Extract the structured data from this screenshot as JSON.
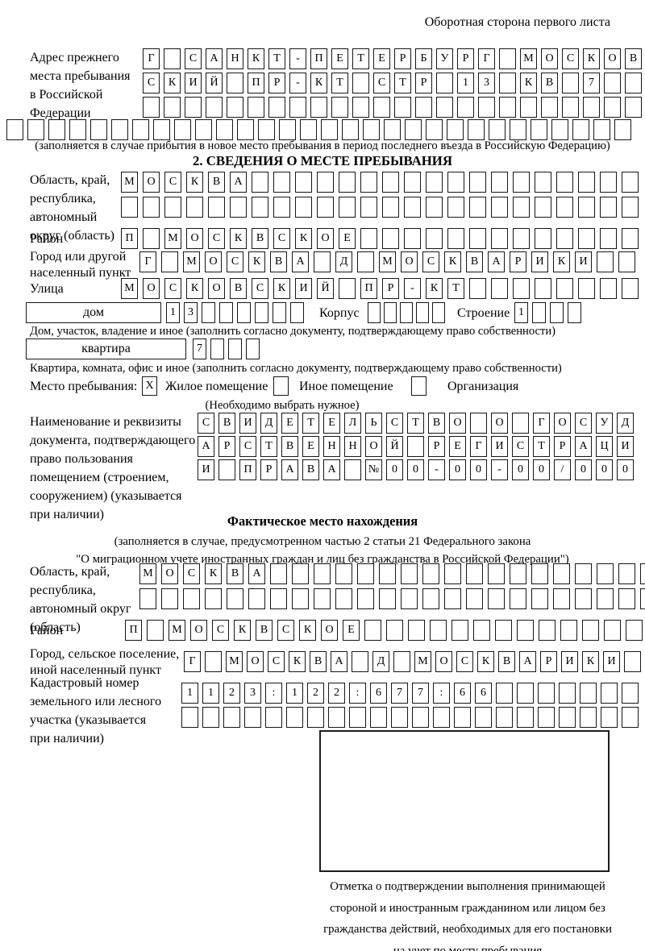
{
  "header": {
    "note": "Оборотная сторона первого листа"
  },
  "prev_address": {
    "label_lines": [
      "Адрес прежнего",
      "места пребывания",
      "в Российской",
      "Федерации"
    ],
    "rows": [
      {
        "text": "Г САНКТ-ПЕТЕРБУРГ МОСКОВ",
        "len": 24
      },
      {
        "text": "СКИЙ ПР-КТ СТР 13 КВ 7",
        "len": 24
      },
      {
        "text": "",
        "len": 24
      },
      {
        "text": "",
        "len": 30
      }
    ],
    "note": "(заполняется в случае прибытия в новое место пребывания в период последнего въезда в Российскую Федерацию)"
  },
  "stay": {
    "title": "2. СВЕДЕНИЯ О МЕСТЕ ПРЕБЫВАНИЯ",
    "oblast": {
      "label_lines": [
        "Область, край,",
        "республика,",
        "автономный",
        "округ (область)"
      ],
      "rows": [
        {
          "text": "МОСКВА",
          "len": 24
        },
        {
          "text": "",
          "len": 24
        }
      ]
    },
    "raion": {
      "label": "Район",
      "row": {
        "text": "П МОСКВСКОЕ",
        "len": 24
      }
    },
    "gorod": {
      "label_lines": [
        "Город или другой",
        "населенный пункт"
      ],
      "row": {
        "text": "Г МОСКВА Д МОСКВАРИКИ",
        "len": 23
      }
    },
    "ulitsa": {
      "label": "Улица",
      "row": {
        "text": "МОСКОВСКИЙ ПР-КТ",
        "len": 24
      }
    },
    "dom": {
      "box_label": "дом",
      "cells": {
        "text": "13",
        "len": 8
      },
      "korpus_label": "Корпус",
      "korpus_cells": {
        "text": "",
        "len": 5
      },
      "stroenie_label": "Строение",
      "stroenie_cells": {
        "text": "1",
        "len": 4
      },
      "note": "Дом, участок, владение и иное (заполнить согласно документу, подтверждающему право собственности)"
    },
    "kvartira": {
      "box_label": "квартира",
      "cells": {
        "text": "7",
        "len": 4
      },
      "note": "Квартира, комната, офис и иное (заполнить согласно документу, подтверждающему право собственности)"
    },
    "mesto": {
      "label": "Место пребывания:",
      "options": [
        {
          "mark": {
            "text": "X",
            "len": 1
          },
          "label": "Жилое помещение"
        },
        {
          "mark": {
            "text": "",
            "len": 1
          },
          "label": "Иное помещение"
        },
        {
          "mark": {
            "text": "",
            "len": 1
          },
          "label": "Организация"
        }
      ],
      "note": "(Необходимо выбрать нужное)"
    },
    "document": {
      "label_lines": [
        "Наименование и реквизиты",
        "документа, подтверждающего",
        "право пользования",
        "помещением (строением,",
        "сооружением) (указывается",
        "при наличии)"
      ],
      "rows": [
        {
          "text": "СВИДЕТЕЛЬСТВО О ГОСУД",
          "len": 21
        },
        {
          "text": "АРСТВЕННОЙ РЕГИСТРАЦИ",
          "len": 21
        },
        {
          "text": "И ПРАВА №00-00-00/000",
          "len": 21
        }
      ]
    }
  },
  "fact": {
    "title": "Фактическое место нахождения",
    "note_lines": [
      "(заполняется в случае, предусмотренном частью 2 статьи 21 Федерального закона",
      "\"О миграционном учете иностранных граждан и лиц без гражданства в Российской Федерации\")"
    ],
    "oblast": {
      "label_lines": [
        "Область, край,",
        "республика,",
        "автономный округ",
        "(область)"
      ],
      "rows": [
        {
          "text": "МОСКВА",
          "len": 24
        },
        {
          "text": "",
          "len": 24
        }
      ]
    },
    "raion": {
      "label": "Район",
      "row": {
        "text": "П МОСКВСКОЕ",
        "len": 24
      }
    },
    "gorod": {
      "label_lines": [
        "Город, сельское поселение,",
        "иной населенный пункт"
      ],
      "row": {
        "text": "Г МОСКВА Д МОСКВАРИКИ",
        "len": 22
      }
    },
    "kadastr": {
      "label_lines": [
        "Кадастровый номер",
        "земельного или лесного",
        "участка (указывается",
        "при наличии)"
      ],
      "rows": [
        {
          "text": "1123:122:677:66",
          "len": 22
        },
        {
          "text": "",
          "len": 22
        }
      ]
    },
    "stamp_caption_lines": [
      "Отметка о подтверждении выполнения принимающей",
      "стороной и иностранным гражданином или лицом без",
      "гражданства действий, необходимых для его постановки",
      "на учет по месту пребывания"
    ]
  }
}
